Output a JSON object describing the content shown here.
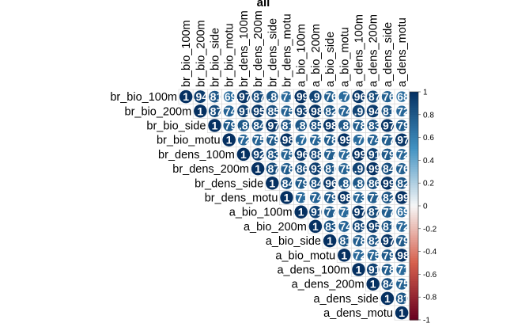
{
  "chart_data": {
    "type": "heatmap",
    "subtype": "corrplot-upper-circle-numbers",
    "title": "all",
    "variables": [
      "br_bio_100m",
      "br_bio_200m",
      "br_bio_side",
      "br_bio_motu",
      "br_dens_100m",
      "br_dens_200m",
      "br_dens_side",
      "br_dens_motu",
      "a_bio_100m",
      "a_bio_200m",
      "a_bio_side",
      "a_bio_motu",
      "a_dens_100m",
      "a_dens_200m",
      "a_dens_side",
      "a_dens_motu"
    ],
    "matrix": [
      [
        1,
        0.94,
        0.81,
        0.69,
        0.97,
        0.87,
        0.8,
        0.71,
        0.99,
        0.9,
        0.76,
        0.7,
        0.96,
        0.87,
        0.76,
        0.68
      ],
      [
        0.94,
        1,
        0.87,
        0.74,
        0.91,
        0.95,
        0.85,
        0.75,
        0.93,
        0.98,
        0.82,
        0.74,
        0.9,
        0.94,
        0.81,
        0.72
      ],
      [
        0.81,
        0.87,
        1,
        0.79,
        0.8,
        0.84,
        0.97,
        0.81,
        0.8,
        0.85,
        0.98,
        0.8,
        0.78,
        0.83,
        0.97,
        0.79
      ],
      [
        0.69,
        0.74,
        0.79,
        1,
        0.72,
        0.75,
        0.79,
        0.98,
        0.7,
        0.73,
        0.78,
        0.99,
        0.7,
        0.74,
        0.77,
        0.97
      ],
      [
        0.97,
        0.91,
        0.8,
        0.72,
        1,
        0.92,
        0.83,
        0.75,
        0.96,
        0.88,
        0.77,
        0.72,
        0.99,
        0.91,
        0.79,
        0.72
      ],
      [
        0.87,
        0.95,
        0.84,
        0.75,
        0.92,
        1,
        0.87,
        0.78,
        0.86,
        0.93,
        0.81,
        0.75,
        0.9,
        0.99,
        0.84,
        0.76
      ],
      [
        0.8,
        0.85,
        0.97,
        0.79,
        0.83,
        0.87,
        1,
        0.84,
        0.79,
        0.84,
        0.96,
        0.8,
        0.8,
        0.86,
        0.99,
        0.82
      ],
      [
        0.71,
        0.75,
        0.81,
        0.98,
        0.75,
        0.78,
        0.84,
        1,
        0.71,
        0.74,
        0.79,
        0.98,
        0.73,
        0.77,
        0.82,
        0.99
      ],
      [
        0.99,
        0.93,
        0.8,
        0.7,
        0.96,
        0.86,
        0.79,
        0.71,
        1,
        0.91,
        0.77,
        0.71,
        0.97,
        0.87,
        0.77,
        0.69
      ],
      [
        0.9,
        0.98,
        0.85,
        0.73,
        0.88,
        0.93,
        0.84,
        0.74,
        0.91,
        1,
        0.83,
        0.74,
        0.89,
        0.95,
        0.81,
        0.72
      ],
      [
        0.76,
        0.82,
        0.98,
        0.78,
        0.77,
        0.81,
        0.96,
        0.79,
        0.77,
        0.83,
        1,
        0.81,
        0.78,
        0.82,
        0.97,
        0.79
      ],
      [
        0.7,
        0.74,
        0.8,
        0.99,
        0.72,
        0.75,
        0.8,
        0.98,
        0.71,
        0.74,
        0.81,
        1,
        0.72,
        0.75,
        0.79,
        0.98
      ],
      [
        0.96,
        0.9,
        0.78,
        0.7,
        0.99,
        0.9,
        0.8,
        0.73,
        0.97,
        0.89,
        0.78,
        0.72,
        1,
        0.91,
        0.78,
        0.71
      ],
      [
        0.87,
        0.94,
        0.83,
        0.74,
        0.91,
        0.99,
        0.86,
        0.77,
        0.87,
        0.95,
        0.82,
        0.75,
        0.91,
        1,
        0.84,
        0.75
      ],
      [
        0.76,
        0.81,
        0.97,
        0.77,
        0.79,
        0.84,
        0.99,
        0.82,
        0.77,
        0.81,
        0.97,
        0.79,
        0.78,
        0.84,
        1,
        0.81
      ],
      [
        0.68,
        0.72,
        0.79,
        0.97,
        0.72,
        0.76,
        0.82,
        0.99,
        0.69,
        0.72,
        0.79,
        0.98,
        0.71,
        0.75,
        0.81,
        1
      ]
    ],
    "colorbar": {
      "ticks": [
        "1",
        "0.8",
        "0.6",
        "0.4",
        "0.2",
        "0",
        "-0.2",
        "-0.4",
        "-0.6",
        "-0.8",
        "-1"
      ],
      "range": [
        -1,
        1
      ]
    },
    "colors": {
      "strong_pos": "#053061",
      "mid_pos": "#4393C3",
      "neutral": "#F7F7F7",
      "mid_neg": "#D6604D",
      "strong_neg": "#67001F",
      "grid": "#d9d9d9"
    }
  }
}
